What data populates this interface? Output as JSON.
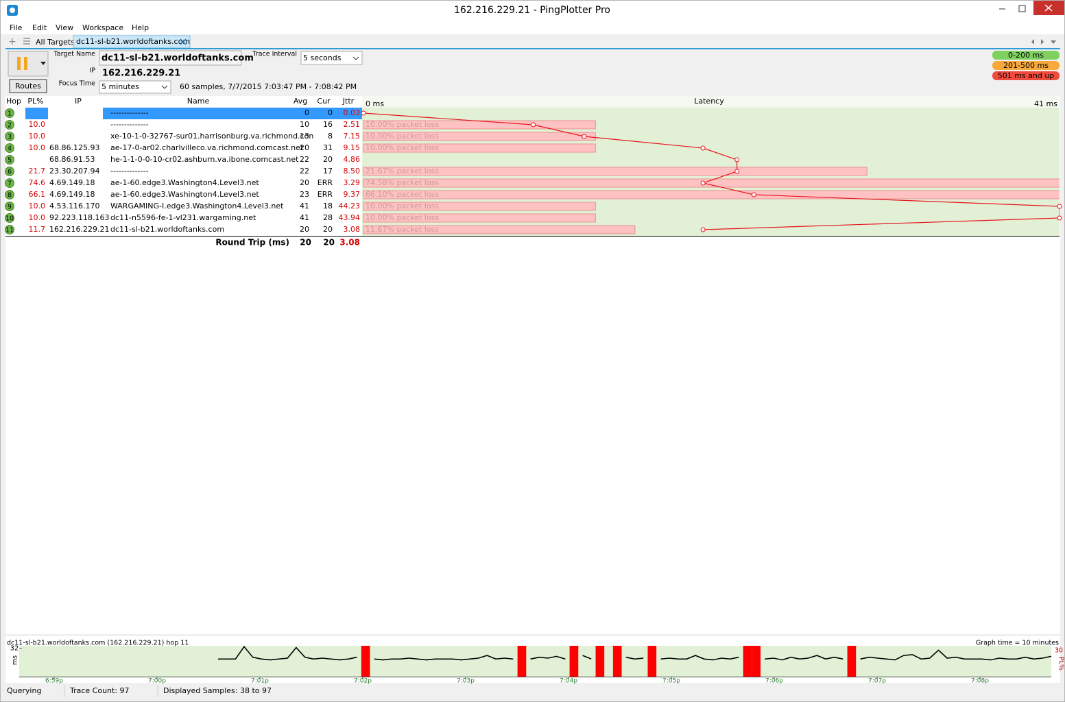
{
  "window": {
    "title": "162.216.229.21 - PingPlotter Pro"
  },
  "menu": [
    "File",
    "Edit",
    "View",
    "Workspace",
    "Help"
  ],
  "tabs": {
    "all": "All Targets",
    "active": "dc11-sl-b21.worldoftanks.com"
  },
  "controls": {
    "target_name_label": "Target Name",
    "target_name": "dc11-sl-b21.worldoftanks.com",
    "trace_interval_label": "Trace Interval",
    "trace_interval": "5 seconds",
    "ip_label": "IP",
    "ip": "162.216.229.21",
    "focus_time_label": "Focus Time",
    "focus_time": "5 minutes",
    "samples": "60 samples, 7/7/2015 7:03:47 PM - 7:08:42 PM",
    "routes": "Routes"
  },
  "legend": [
    {
      "label": "0-200 ms",
      "color": "#7fd05f"
    },
    {
      "label": "201-500 ms",
      "color": "#f8a93c"
    },
    {
      "label": "501 ms and up",
      "color": "#f04c3e"
    }
  ],
  "table": {
    "columns": [
      "Hop",
      "PL%",
      "IP",
      "Name",
      "Avg",
      "Cur",
      "Jttr"
    ],
    "latency_title": "Latency",
    "latency_min": "0 ms",
    "latency_max": "41 ms",
    "rows": [
      {
        "hop": 1,
        "name": "--------------",
        "avg": 0,
        "cur": "0",
        "jitter": "0.03"
      },
      {
        "hop": 2,
        "pl": "10.0",
        "name": "--------------",
        "avg": 10,
        "cur": "16",
        "jitter": "2.51",
        "loss_label": "10.00% packet loss"
      },
      {
        "hop": 3,
        "pl": "10.0",
        "name": "xe-10-1-0-32767-sur01.harrisonburg.va.richmond.con",
        "avg": 13,
        "cur": "8",
        "jitter": "7.15",
        "loss_label": "10.00% packet loss"
      },
      {
        "hop": 4,
        "pl": "10.0",
        "ip": "68.86.125.93",
        "name": "ae-17-0-ar02.charlvilleco.va.richmond.comcast.net",
        "avg": 20,
        "cur": "31",
        "jitter": "9.15",
        "loss_label": "10.00% packet loss"
      },
      {
        "hop": 5,
        "ip": "68.86.91.53",
        "name": "he-1-1-0-0-10-cr02.ashburn.va.ibone.comcast.net",
        "avg": 22,
        "cur": "20",
        "jitter": "4.86"
      },
      {
        "hop": 6,
        "pl": "21.7",
        "ip": "23.30.207.94",
        "name": "--------------",
        "avg": 22,
        "cur": "17",
        "jitter": "8.50",
        "loss_label": "21.67% packet loss"
      },
      {
        "hop": 7,
        "pl": "74.6",
        "ip": "4.69.149.18",
        "name": "ae-1-60.edge3.Washington4.Level3.net",
        "avg": 20,
        "cur": "ERR",
        "jitter": "3.29",
        "loss_label": "74.58% packet loss"
      },
      {
        "hop": 8,
        "pl": "66.1",
        "ip": "4.69.149.18",
        "name": "ae-1-60.edge3.Washington4.Level3.net",
        "avg": 23,
        "cur": "ERR",
        "jitter": "9.37",
        "loss_label": "66.10% packet loss"
      },
      {
        "hop": 9,
        "pl": "10.0",
        "ip": "4.53.116.170",
        "name": "WARGAMING-I.edge3.Washington4.Level3.net",
        "avg": 41,
        "cur": "18",
        "jitter": "44.23",
        "loss_label": "10.00% packet loss"
      },
      {
        "hop": 10,
        "pl": "10.0",
        "ip": "92.223.118.163",
        "name": "dc11-n5596-fe-1-vl231.wargaming.net",
        "avg": 41,
        "cur": "28",
        "jitter": "43.94",
        "loss_label": "10.00% packet loss"
      },
      {
        "hop": 11,
        "pl": "11.7",
        "ip": "162.216.229.21",
        "name": "dc11-sl-b21.worldoftanks.com",
        "avg": 20,
        "cur": "20",
        "jitter": "3.08",
        "loss_label": "11.67% packet loss"
      }
    ],
    "round_trip": {
      "label": "Round Trip (ms)",
      "avg": 20,
      "cur": 20,
      "jitter": "3.08"
    }
  },
  "history": {
    "title": "dc11-sl-b21.worldoftanks.com (162.216.229.21) hop 11",
    "graph_time": "Graph time = 10 minutes",
    "ylabel": "ms",
    "ylim": [
      0,
      35
    ],
    "yticks": [
      32
    ],
    "pl_axis": 30,
    "pl_label": "PL%",
    "xticks": [
      "6:59p",
      "7:00p",
      "7:01p",
      "7:02p",
      "7:03p",
      "7:04p",
      "7:05p",
      "7:06p",
      "7:07p",
      "7:08p"
    ],
    "values": [
      20,
      20,
      20,
      34,
      22,
      20,
      19,
      20,
      21,
      33,
      22,
      20,
      21,
      20,
      19,
      20,
      22,
      null,
      20,
      19,
      20,
      20,
      21,
      20,
      19,
      20,
      20,
      20,
      19,
      20,
      21,
      24,
      20,
      21,
      20,
      null,
      20,
      22,
      21,
      23,
      20,
      null,
      24,
      20,
      null,
      28,
      null,
      22,
      20,
      21,
      null,
      20,
      21,
      20,
      20,
      24,
      20,
      19,
      21,
      20,
      22,
      null,
      null,
      20,
      21,
      19,
      22,
      20,
      21,
      24,
      20,
      22,
      20,
      null,
      20,
      22,
      21,
      20,
      19,
      24,
      25,
      20,
      21,
      30,
      21,
      22,
      20,
      20,
      20,
      19,
      21,
      20,
      20,
      22,
      20,
      21,
      23
    ],
    "pl": [
      0,
      0,
      0,
      0,
      0,
      0,
      0,
      0,
      0,
      0,
      0,
      0,
      0,
      0,
      0,
      0,
      0,
      100,
      0,
      0,
      0,
      0,
      0,
      0,
      0,
      0,
      0,
      0,
      0,
      0,
      0,
      0,
      0,
      0,
      0,
      100,
      0,
      0,
      0,
      0,
      0,
      100,
      0,
      0,
      100,
      0,
      100,
      0,
      0,
      0,
      100,
      0,
      0,
      0,
      0,
      0,
      0,
      0,
      0,
      0,
      0,
      100,
      100,
      0,
      0,
      0,
      0,
      0,
      0,
      0,
      0,
      0,
      0,
      100,
      0,
      0,
      0,
      0,
      0,
      0,
      0,
      0,
      0,
      0,
      0,
      0,
      0,
      0,
      0,
      0,
      0,
      0,
      0,
      0,
      0,
      0,
      0
    ]
  },
  "status": [
    "Querying",
    "Trace Count: 97",
    "Displayed Samples: 38 to 97"
  ]
}
